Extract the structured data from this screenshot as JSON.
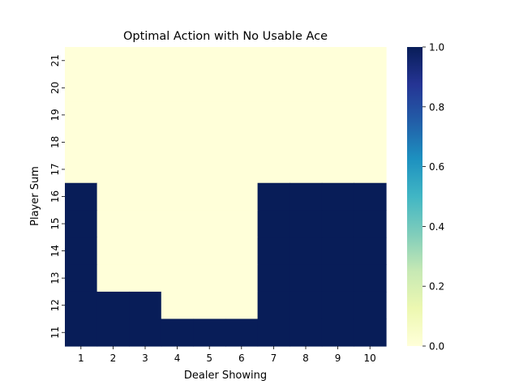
{
  "chart_data": {
    "type": "heatmap",
    "title": "Optimal Action with No Usable Ace",
    "xlabel": "Dealer Showing",
    "ylabel": "Player Sum",
    "x_categories": [
      "1",
      "2",
      "3",
      "4",
      "5",
      "6",
      "7",
      "8",
      "9",
      "10"
    ],
    "y_categories": [
      "21",
      "20",
      "19",
      "18",
      "17",
      "16",
      "15",
      "14",
      "13",
      "12",
      "11"
    ],
    "values": [
      [
        0,
        0,
        0,
        0,
        0,
        0,
        0,
        0,
        0,
        0
      ],
      [
        0,
        0,
        0,
        0,
        0,
        0,
        0,
        0,
        0,
        0
      ],
      [
        0,
        0,
        0,
        0,
        0,
        0,
        0,
        0,
        0,
        0
      ],
      [
        0,
        0,
        0,
        0,
        0,
        0,
        0,
        0,
        0,
        0
      ],
      [
        0,
        0,
        0,
        0,
        0,
        0,
        0,
        0,
        0,
        0
      ],
      [
        1,
        0,
        0,
        0,
        0,
        0,
        1,
        1,
        1,
        1
      ],
      [
        1,
        0,
        0,
        0,
        0,
        0,
        1,
        1,
        1,
        1
      ],
      [
        1,
        0,
        0,
        0,
        0,
        0,
        1,
        1,
        1,
        1
      ],
      [
        1,
        0,
        0,
        0,
        0,
        0,
        1,
        1,
        1,
        1
      ],
      [
        1,
        1,
        1,
        0,
        0,
        0,
        1,
        1,
        1,
        1
      ],
      [
        1,
        1,
        1,
        1,
        1,
        1,
        1,
        1,
        1,
        1
      ]
    ],
    "colorbar": {
      "range": [
        0.0,
        1.0
      ],
      "ticks": [
        "0.0",
        "0.2",
        "0.4",
        "0.6",
        "0.8",
        "1.0"
      ],
      "colormap": "YlGnBu",
      "low_color": "#ffffd9",
      "high_color": "#081d58"
    }
  }
}
